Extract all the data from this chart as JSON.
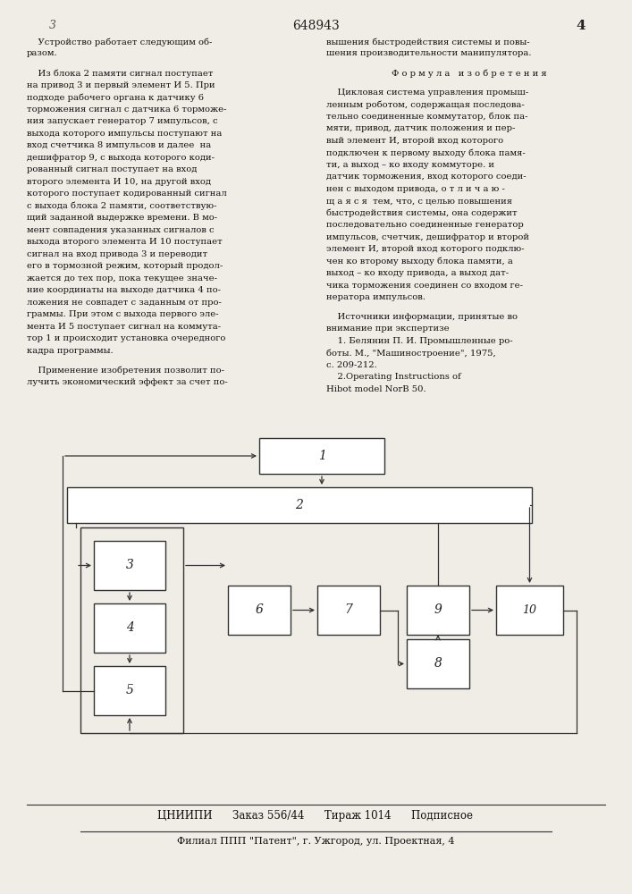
{
  "page_number_left": "3",
  "page_number_center": "648943",
  "page_number_right": "4",
  "background_color": "#f0ede6",
  "text_color": "#1a1a1a",
  "footer_line1": "ЦНИИПИ      Заказ 556/44      Тираж 1014      Подписное",
  "footer_line2": "Филиал ППП \"Патент\", г. Ужгород, ул. Проектная, 4"
}
